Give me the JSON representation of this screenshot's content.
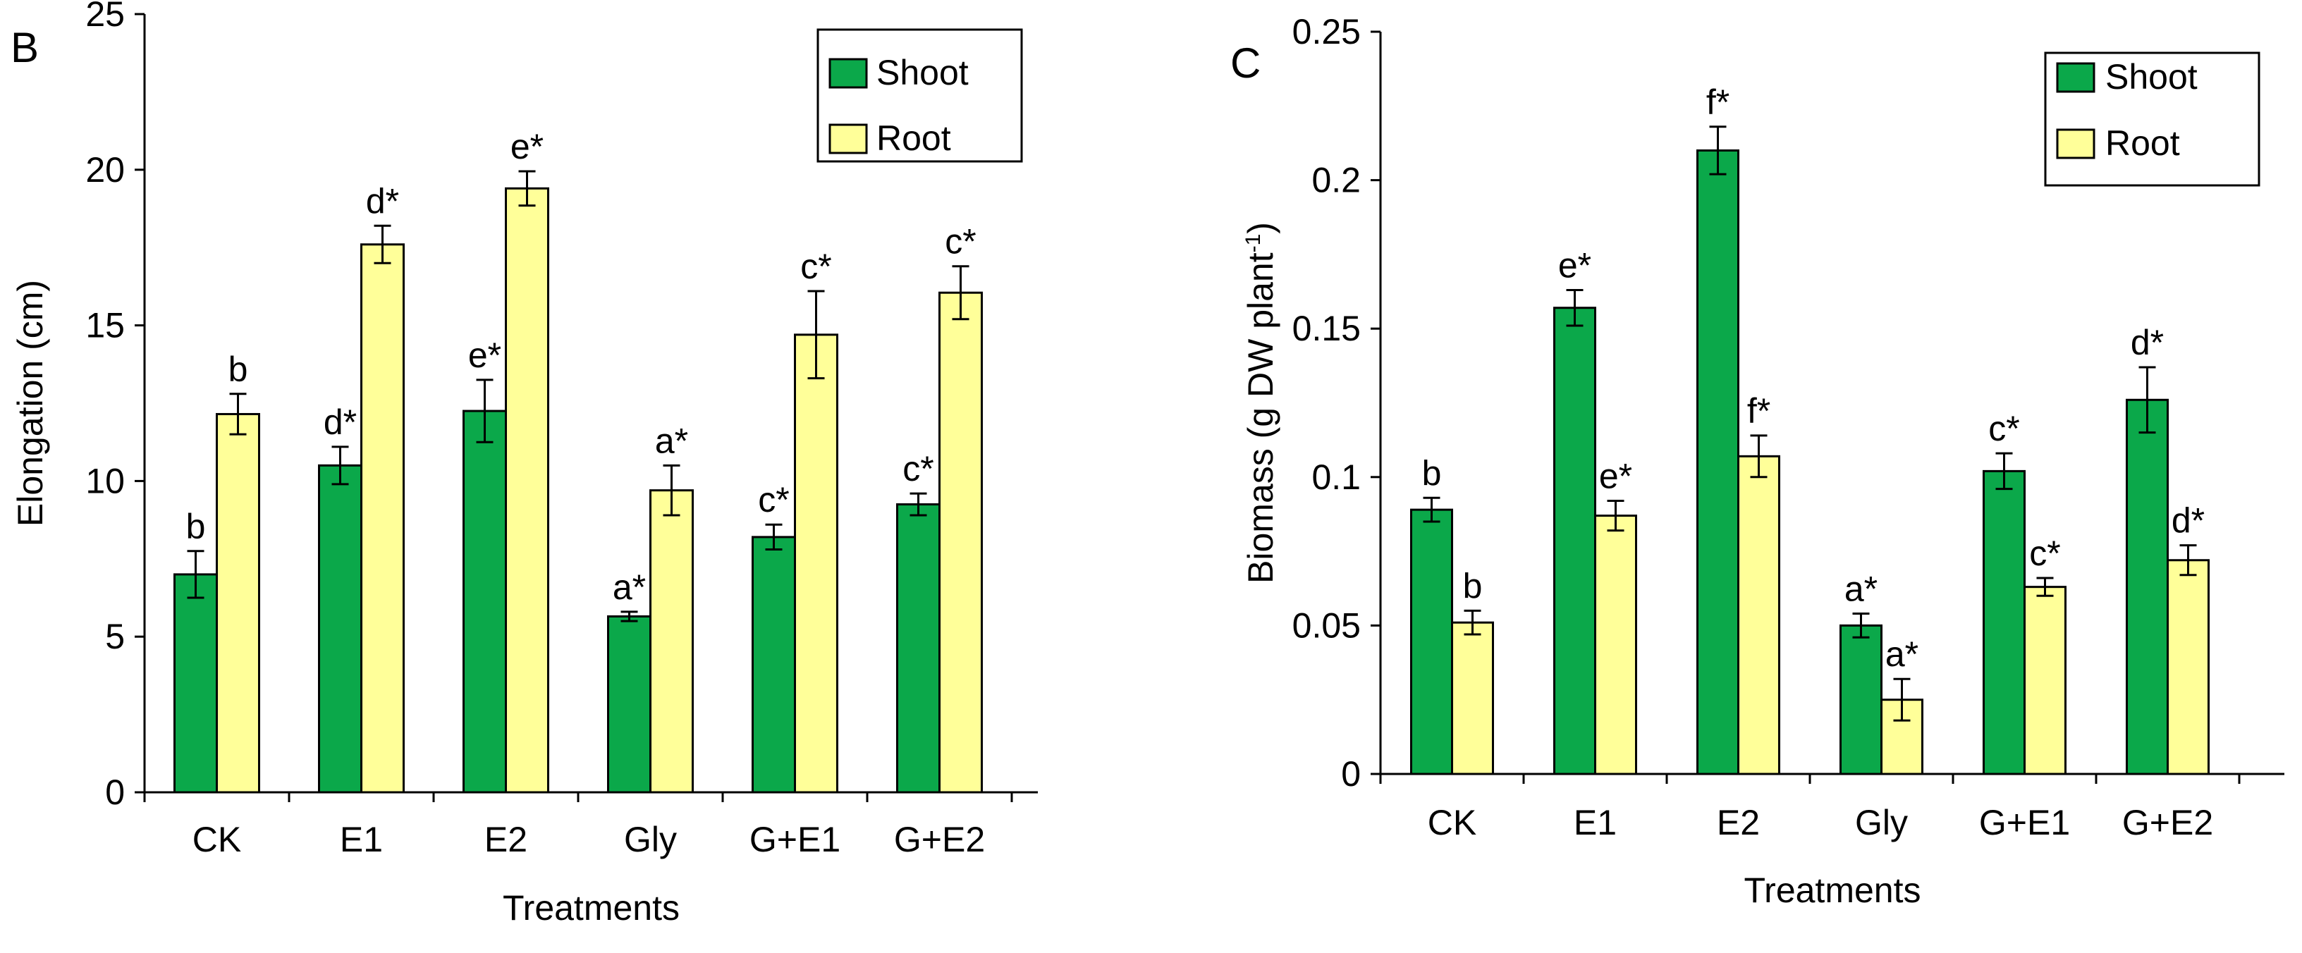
{
  "chart_data": [
    {
      "panel_label": "B",
      "type": "bar",
      "ylabel": "Elongation (cm)",
      "xlabel": "Treatments",
      "categories": [
        "CK",
        "E1",
        "E2",
        "Gly",
        "G+E1",
        "G+E2"
      ],
      "ylim": [
        0,
        25
      ],
      "yticks": [
        0,
        5,
        10,
        15,
        20,
        25
      ],
      "ytick_labels": [
        "0",
        "5",
        "10",
        "15",
        "20",
        "25"
      ],
      "legend": {
        "position": "top-right",
        "entries": [
          "Shoot",
          "Root"
        ]
      },
      "series": [
        {
          "name": "Shoot",
          "color": "#0ba84a",
          "values": [
            7.0,
            10.5,
            12.25,
            5.65,
            8.2,
            9.25
          ],
          "errors": [
            0.75,
            0.6,
            1.0,
            0.15,
            0.4,
            0.35
          ],
          "letters": [
            "b",
            "d*",
            "e*",
            "a*",
            "c*",
            "c*"
          ]
        },
        {
          "name": "Root",
          "color": "#ffff99",
          "values": [
            12.15,
            17.6,
            19.4,
            9.7,
            14.7,
            16.05
          ],
          "errors": [
            0.65,
            0.6,
            0.55,
            0.8,
            1.4,
            0.85
          ],
          "letters": [
            "b",
            "d*",
            "e*",
            "a*",
            "c*",
            "c*"
          ]
        }
      ]
    },
    {
      "panel_label": "C",
      "type": "bar",
      "ylabel_main": "Biomass (g DW plant",
      "ylabel_sup": "-1",
      "ylabel_close": ")",
      "xlabel": "Treatments",
      "categories": [
        "CK",
        "E1",
        "E2",
        "Gly",
        "G+E1",
        "G+E2"
      ],
      "ylim": [
        0,
        0.25
      ],
      "yticks": [
        0,
        0.05,
        0.1,
        0.15,
        0.2,
        0.25
      ],
      "ytick_labels": [
        "0",
        "0.05",
        "0.1",
        "0.15",
        "0.2",
        "0.25"
      ],
      "legend": {
        "position": "top-right",
        "entries": [
          "Shoot",
          "Root"
        ]
      },
      "series": [
        {
          "name": "Shoot",
          "color": "#0ba84a",
          "values": [
            0.089,
            0.157,
            0.21,
            0.05,
            0.102,
            0.126
          ],
          "errors": [
            0.004,
            0.006,
            0.008,
            0.004,
            0.006,
            0.011
          ],
          "letters": [
            "b",
            "e*",
            "f*",
            "a*",
            "c*",
            "d*"
          ]
        },
        {
          "name": "Root",
          "color": "#ffff99",
          "values": [
            0.051,
            0.087,
            0.107,
            0.025,
            0.063,
            0.072
          ],
          "errors": [
            0.004,
            0.005,
            0.007,
            0.007,
            0.003,
            0.005
          ],
          "letters": [
            "b",
            "e*",
            "f*",
            "a*",
            "c*",
            "d*"
          ]
        }
      ]
    }
  ]
}
